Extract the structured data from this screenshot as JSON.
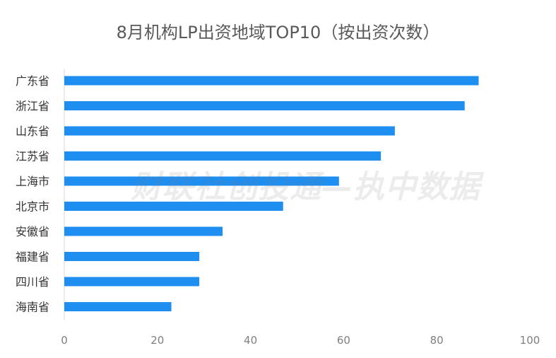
{
  "chart_data": {
    "type": "bar",
    "orientation": "horizontal",
    "title": "8月机构LP出资地域TOP10（按出资次数）",
    "categories": [
      "广东省",
      "浙江省",
      "山东省",
      "江苏省",
      "上海市",
      "北京市",
      "安徽省",
      "福建省",
      "四川省",
      "海南省"
    ],
    "values": [
      89,
      86,
      71,
      68,
      59,
      47,
      34,
      29,
      29,
      23
    ],
    "xlim": [
      0,
      100
    ],
    "xticks": [
      0,
      20,
      40,
      60,
      80,
      100
    ],
    "xlabel": "",
    "ylabel": "",
    "grid": false,
    "legend": "none",
    "bar_color": "#1f8ef1",
    "watermark": "财联社创投通—执中数据"
  }
}
